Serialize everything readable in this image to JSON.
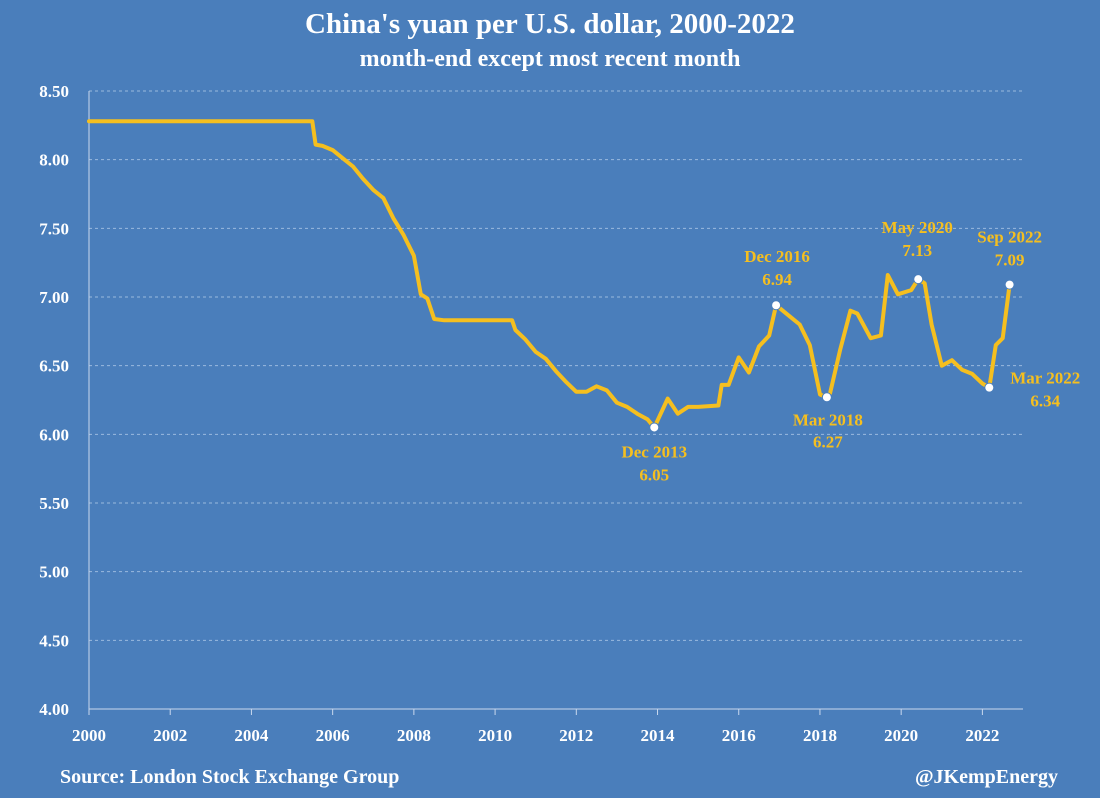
{
  "chart_data": {
    "type": "line",
    "title": "China's yuan per U.S. dollar, 2000-2022",
    "subtitle": "month-end except most recent month",
    "source": "Source: London Stock Exchange Group",
    "handle": "@JKempEnergy",
    "xlabel": "",
    "ylabel": "",
    "xlim": [
      2000,
      2023
    ],
    "ylim": [
      4.0,
      8.5
    ],
    "grid": "horizontal-dashed",
    "line_color": "#f5bf1f",
    "background_color": "#4a7ebb",
    "x_ticks": [
      "2000",
      "2002",
      "2004",
      "2006",
      "2008",
      "2010",
      "2012",
      "2014",
      "2016",
      "2018",
      "2020",
      "2022"
    ],
    "y_ticks": [
      "4.00",
      "4.50",
      "5.00",
      "5.50",
      "6.00",
      "6.50",
      "7.00",
      "7.50",
      "8.00",
      "8.50"
    ],
    "series": [
      {
        "name": "CNY per USD",
        "x": [
          2000.0,
          2005.5,
          2005.58,
          2005.75,
          2006.0,
          2006.25,
          2006.5,
          2006.75,
          2007.0,
          2007.25,
          2007.5,
          2007.75,
          2008.0,
          2008.17,
          2008.33,
          2008.5,
          2008.75,
          2009.0,
          2009.5,
          2010.0,
          2010.42,
          2010.5,
          2010.75,
          2011.0,
          2011.25,
          2011.5,
          2011.75,
          2012.0,
          2012.25,
          2012.5,
          2012.75,
          2013.0,
          2013.25,
          2013.5,
          2013.75,
          2013.92,
          2014.25,
          2014.5,
          2014.75,
          2015.0,
          2015.5,
          2015.58,
          2015.75,
          2016.0,
          2016.25,
          2016.5,
          2016.75,
          2016.92,
          2017.25,
          2017.5,
          2017.75,
          2018.0,
          2018.17,
          2018.25,
          2018.5,
          2018.75,
          2018.92,
          2019.25,
          2019.5,
          2019.67,
          2019.92,
          2020.25,
          2020.42,
          2020.58,
          2020.75,
          2021.0,
          2021.25,
          2021.5,
          2021.75,
          2022.0,
          2022.17,
          2022.33,
          2022.5,
          2022.67
        ],
        "values": [
          8.28,
          8.28,
          8.11,
          8.1,
          8.07,
          8.01,
          7.95,
          7.86,
          7.78,
          7.72,
          7.57,
          7.45,
          7.3,
          7.02,
          6.99,
          6.84,
          6.83,
          6.83,
          6.83,
          6.83,
          6.83,
          6.76,
          6.69,
          6.6,
          6.55,
          6.46,
          6.38,
          6.31,
          6.31,
          6.35,
          6.32,
          6.23,
          6.2,
          6.15,
          6.11,
          6.05,
          6.26,
          6.15,
          6.2,
          6.2,
          6.21,
          6.36,
          6.36,
          6.56,
          6.45,
          6.64,
          6.72,
          6.94,
          6.86,
          6.8,
          6.65,
          6.29,
          6.27,
          6.3,
          6.62,
          6.9,
          6.88,
          6.7,
          6.72,
          7.16,
          7.02,
          7.05,
          7.13,
          7.1,
          6.8,
          6.5,
          6.54,
          6.47,
          6.44,
          6.37,
          6.34,
          6.65,
          6.7,
          7.09
        ]
      }
    ],
    "annotations": [
      {
        "label": "Dec 2013",
        "value": "6.05",
        "x": 2013.92,
        "y": 6.05
      },
      {
        "label": "Dec 2016",
        "value": "6.94",
        "x": 2016.92,
        "y": 6.94
      },
      {
        "label": "Mar 2018",
        "value": "6.27",
        "x": 2018.17,
        "y": 6.27
      },
      {
        "label": "May 2020",
        "value": "7.13",
        "x": 2020.42,
        "y": 7.13
      },
      {
        "label": "Sep 2022",
        "value": "7.09",
        "x": 2022.67,
        "y": 7.09
      },
      {
        "label": "Mar 2022",
        "value": "6.34",
        "x": 2022.17,
        "y": 6.34
      }
    ]
  }
}
